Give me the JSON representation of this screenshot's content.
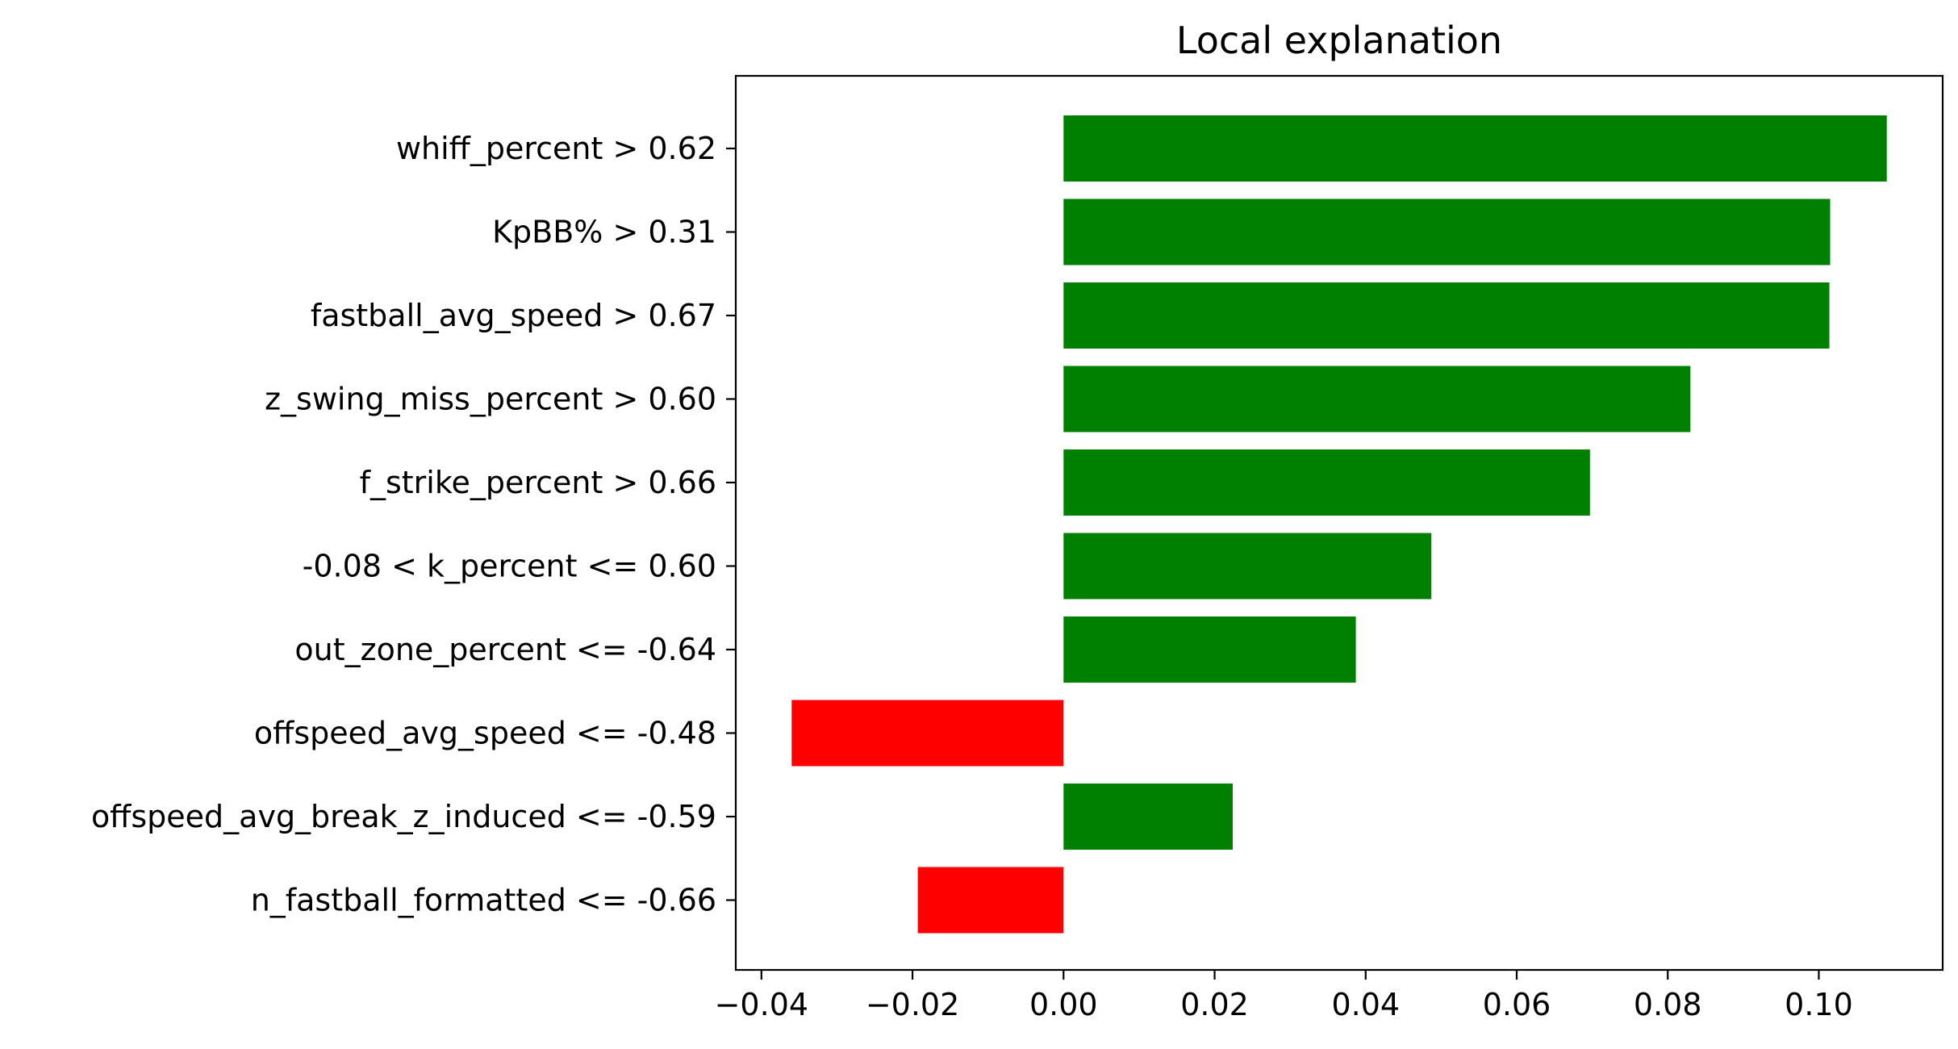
{
  "chart_data": {
    "type": "bar",
    "orientation": "horizontal",
    "title": "Local explanation",
    "xlabel": "",
    "ylabel": "",
    "xlim": [
      -0.0434,
      0.1164
    ],
    "xticks": [
      -0.04,
      -0.02,
      0.0,
      0.02,
      0.04,
      0.06,
      0.08,
      0.1
    ],
    "xtick_labels": [
      "−0.04",
      "−0.02",
      "0.00",
      "0.02",
      "0.04",
      "0.06",
      "0.08",
      "0.10"
    ],
    "grid": false,
    "legend": "none",
    "colors": {
      "positive": "#008000",
      "negative": "#ff0000"
    },
    "categories": [
      "whiff_percent > 0.62",
      "KpBB% > 0.31",
      "fastball_avg_speed > 0.67",
      "z_swing_miss_percent > 0.60",
      "f_strike_percent > 0.66",
      "-0.08 < k_percent <= 0.60",
      "out_zone_percent <= -0.64",
      "offspeed_avg_speed <= -0.48",
      "offspeed_avg_break_z_induced <= -0.59",
      "n_fastball_formatted <= -0.66"
    ],
    "values": [
      0.109,
      0.1015,
      0.1014,
      0.083,
      0.0697,
      0.0487,
      0.0387,
      -0.036,
      0.0224,
      -0.0193
    ]
  }
}
